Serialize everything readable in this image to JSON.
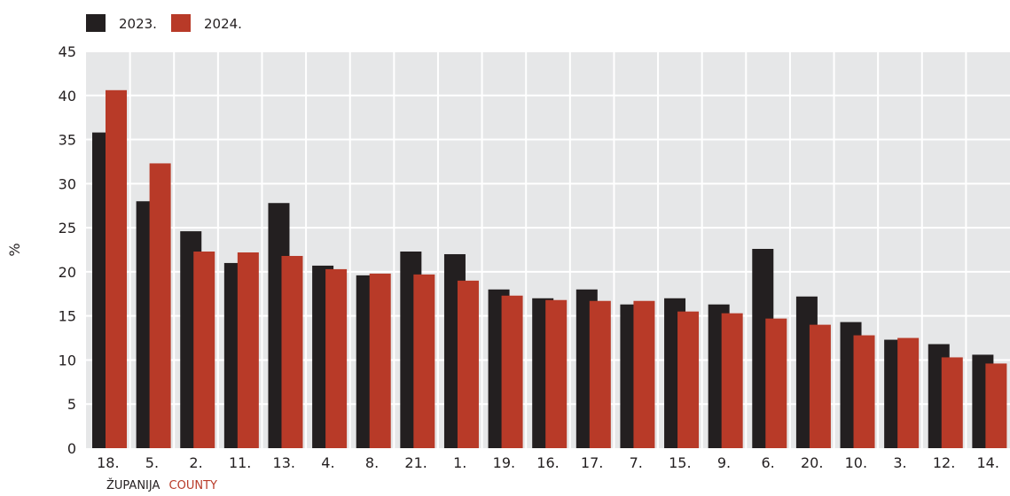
{
  "chart_data": {
    "type": "bar",
    "ylabel": "%",
    "xlabel": "ŽUPANIJA",
    "xlabel_secondary": "COUNTY",
    "ylim": [
      0,
      45
    ],
    "yticks": [
      0,
      5,
      10,
      15,
      20,
      25,
      30,
      35,
      40,
      45
    ],
    "grid": true,
    "legend_position": "top-left",
    "categories": [
      "18.",
      "5.",
      "2.",
      "11.",
      "13.",
      "4.",
      "8.",
      "21.",
      "1.",
      "19.",
      "16.",
      "17.",
      "7.",
      "15.",
      "9.",
      "6.",
      "20.",
      "10.",
      "3.",
      "12.",
      "14."
    ],
    "series": [
      {
        "name": "2023.",
        "color": "#231f20",
        "values": [
          35.8,
          28.0,
          24.6,
          21.0,
          27.8,
          20.7,
          19.6,
          22.3,
          22.0,
          18.0,
          17.0,
          18.0,
          16.3,
          17.0,
          16.3,
          22.6,
          17.2,
          14.3,
          12.3,
          11.8,
          10.6
        ]
      },
      {
        "name": "2024.",
        "color": "#b83a28",
        "values": [
          40.6,
          32.3,
          22.3,
          22.2,
          21.8,
          20.3,
          19.8,
          19.7,
          19.0,
          17.3,
          16.8,
          16.7,
          16.7,
          15.5,
          15.3,
          14.7,
          14.0,
          12.8,
          12.5,
          10.3,
          9.6
        ]
      }
    ]
  },
  "colors": {
    "plot_background": "#e6e7e8",
    "grid": "#ffffff",
    "axis_text": "#231f20",
    "accent": "#b83a28"
  }
}
